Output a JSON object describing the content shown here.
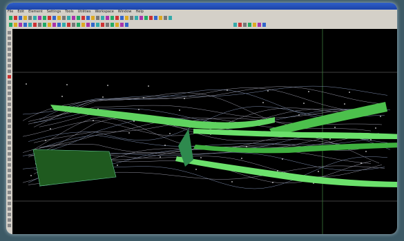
{
  "window": {
    "menu": [
      "File",
      "Edit",
      "Element",
      "Settings",
      "Tools",
      "Utilities",
      "Workspace",
      "Window",
      "Help"
    ]
  }
}
